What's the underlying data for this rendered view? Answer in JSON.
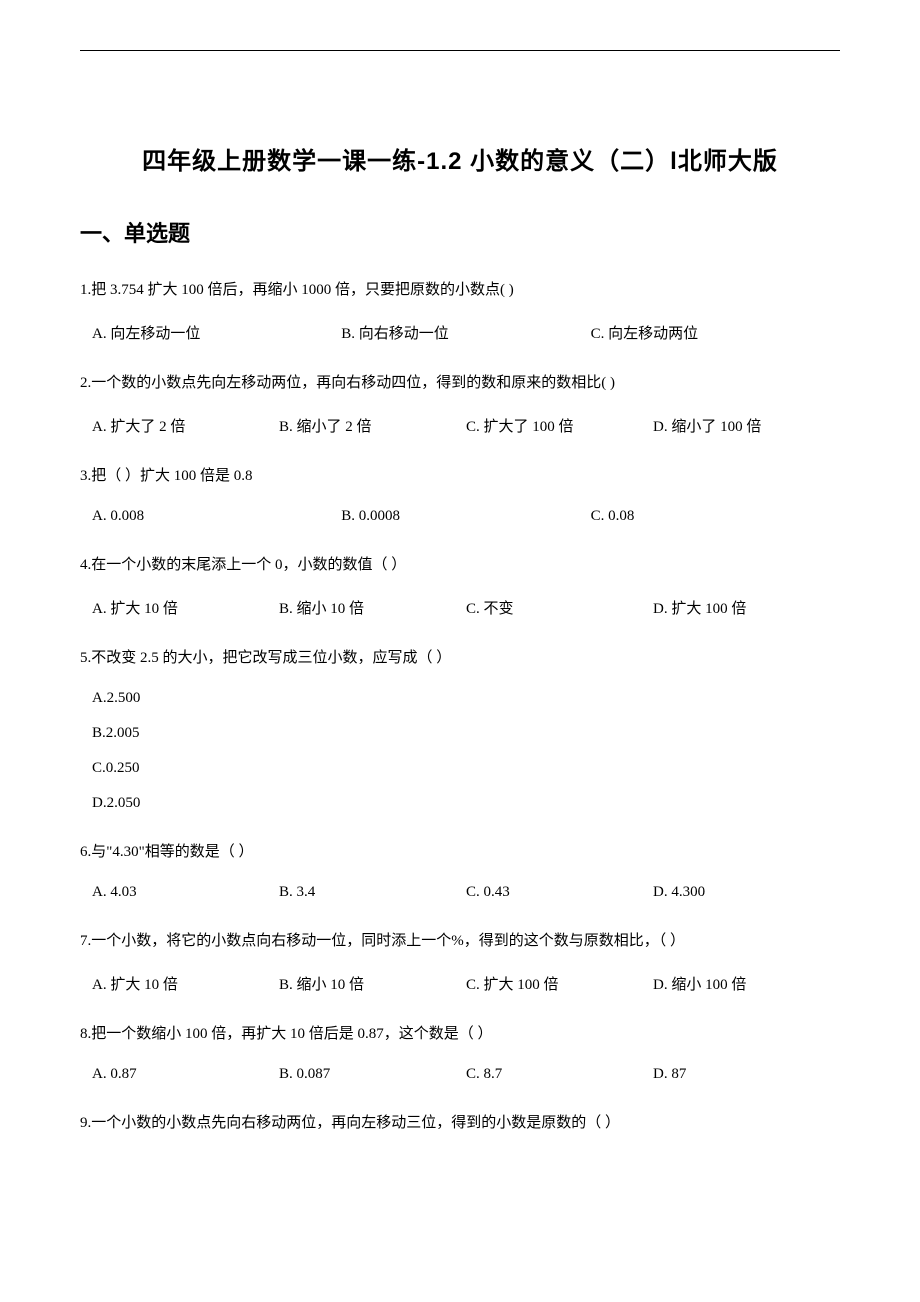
{
  "title": "四年级上册数学一课一练-1.2 小数的意义（二）l北师大版",
  "section_header": "一、单选题",
  "questions": {
    "q1": {
      "text": "1.把 3.754 扩大 100 倍后，再缩小 1000 倍，只要把原数的小数点(    )",
      "a": "A. 向左移动一位",
      "b": "B. 向右移动一位",
      "c": "C. 向左移动两位"
    },
    "q2": {
      "text": "2.一个数的小数点先向左移动两位，再向右移动四位，得到的数和原来的数相比(    )",
      "a": "A. 扩大了 2 倍",
      "b": "B. 缩小了 2 倍",
      "c": "C. 扩大了 100 倍",
      "d": "D. 缩小了 100 倍"
    },
    "q3": {
      "text": "3.把（   ）扩大 100 倍是 0.8",
      "a": "A. 0.008",
      "b": "B. 0.0008",
      "c": "C. 0.08"
    },
    "q4": {
      "text": "4.在一个小数的末尾添上一个 0，小数的数值（    ）",
      "a": "A. 扩大 10 倍",
      "b": "B. 缩小 10 倍",
      "c": "C. 不变",
      "d": "D. 扩大 100 倍"
    },
    "q5": {
      "text": "5.不改变 2.5 的大小，把它改写成三位小数，应写成（    ）",
      "a": "A.2.500",
      "b": "B.2.005",
      "c": "C.0.250",
      "d": "D.2.050"
    },
    "q6": {
      "text": "6.与\"4.30\"相等的数是（    ）",
      "a": "A. 4.03",
      "b": "B. 3.4",
      "c": "C. 0.43",
      "d": "D. 4.300"
    },
    "q7": {
      "text": "7.一个小数，将它的小数点向右移动一位，同时添上一个%，得到的这个数与原数相比，（    ）",
      "a": "A. 扩大 10 倍",
      "b": "B. 缩小 10 倍",
      "c": "C. 扩大 100 倍",
      "d": "D. 缩小 100 倍"
    },
    "q8": {
      "text": "8.把一个数缩小 100 倍，再扩大 10 倍后是 0.87，这个数是（    ）",
      "a": "A. 0.87",
      "b": "B. 0.087",
      "c": "C. 8.7",
      "d": "D. 87"
    },
    "q9": {
      "text": "9.一个小数的小数点先向右移动两位，再向左移动三位，得到的小数是原数的（    ）"
    }
  }
}
